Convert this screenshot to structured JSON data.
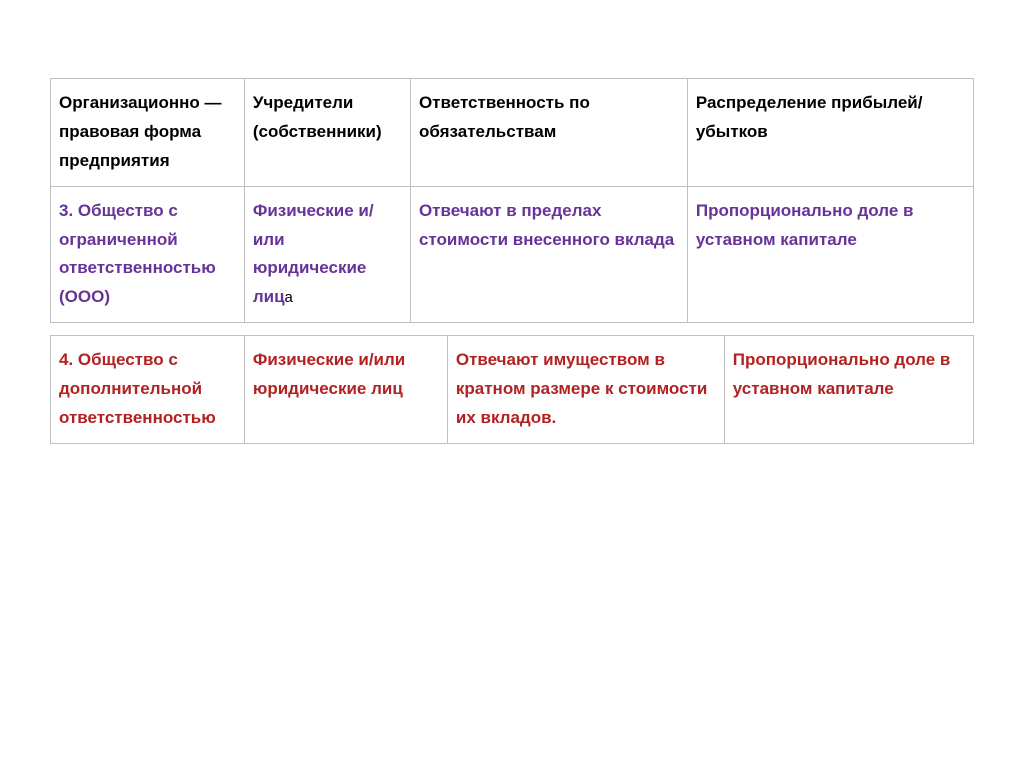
{
  "table1": {
    "header": {
      "col1": "Организационно — правовая форма предприятия",
      "col2": "Учредители (собственники)",
      "col3": "Ответственность по обязательствам",
      "col4": "Распределение прибылей/убытков"
    },
    "row": {
      "col1": "3. Общество с ограниченной ответственностью (ООО)",
      "col2": "Физические и/или юридические лиц",
      "col2_extra": "а",
      "col3": "Отвечают в пределах стоимости внесенного вклада",
      "col4": "Пропорционально доле в уставном капитале"
    }
  },
  "table2": {
    "row": {
      "col1": "4. Общество с дополнительной ответственностью",
      "col2": "Физические и/или юридические лиц",
      "col3": "Отвечают имуществом в кратном размере к стоимости их вкладов.",
      "col4": "Пропорционально доле в уставном капитале"
    }
  },
  "colors": {
    "header_text": "#000000",
    "purple_text": "#663399",
    "red_text": "#b22222",
    "border": "#c0c0c0",
    "background": "#ffffff"
  },
  "typography": {
    "font_family": "Arial",
    "font_size": 17,
    "font_weight": "bold",
    "line_height": 1.7
  }
}
